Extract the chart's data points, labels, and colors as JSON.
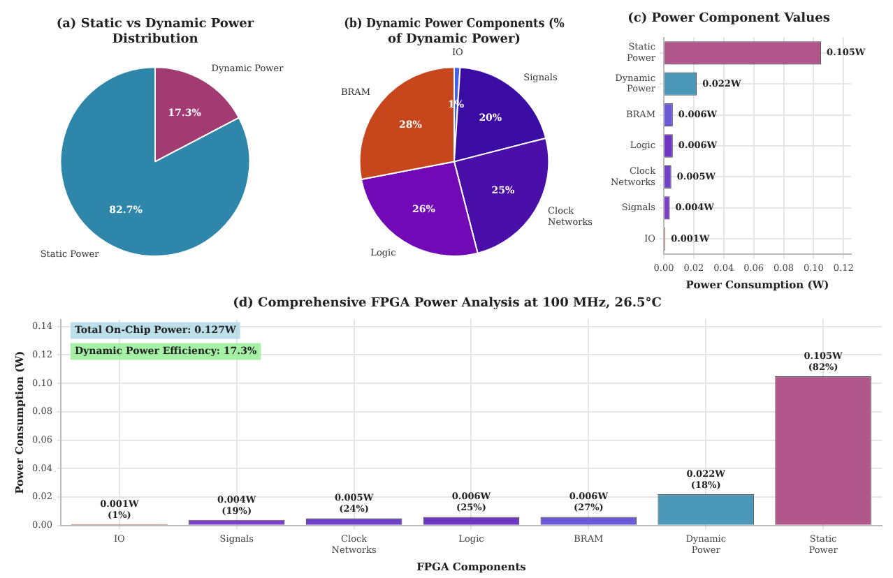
{
  "chart_data": [
    {
      "type": "pie",
      "title": "(a) Static vs Dynamic Power Distribution",
      "categories": [
        "Dynamic Power",
        "Static Power"
      ],
      "values": [
        17.3,
        82.7
      ],
      "colors": [
        "#a23b72",
        "#2e86ab"
      ],
      "value_labels": [
        "17.3%",
        "82.7%"
      ],
      "legend": false
    },
    {
      "type": "pie",
      "title": "(b) Dynamic Power Components (% of Dynamic Power)",
      "categories": [
        "IO",
        "Signals",
        "Clock Networks",
        "Logic",
        "BRAM"
      ],
      "values": [
        1,
        20,
        25,
        26,
        28
      ],
      "colors": [
        "#4361ee",
        "#3a0ca3",
        "#4a0fa8",
        "#7209b7",
        "#c8461c"
      ],
      "value_labels": [
        "1%",
        "20%",
        "25%",
        "26%",
        "28%"
      ],
      "legend": false
    },
    {
      "type": "bar",
      "orientation": "horizontal",
      "title": "(c) Power Component Values",
      "xlabel": "Power Consumption (W)",
      "categories": [
        "Static Power",
        "Dynamic Power",
        "BRAM",
        "Logic",
        "Clock Networks",
        "Signals",
        "IO"
      ],
      "values": [
        0.105,
        0.022,
        0.006,
        0.006,
        0.005,
        0.004,
        0.001
      ],
      "colors": [
        "#b0568a",
        "#4b97b8",
        "#6a5ad8",
        "#6c35c2",
        "#7140c8",
        "#7d3ec8",
        "#c8604a"
      ],
      "value_labels": [
        "0.105W",
        "0.022W",
        "0.006W",
        "0.006W",
        "0.005W",
        "0.004W",
        "0.001W"
      ],
      "xlim": [
        0,
        0.125
      ],
      "xticks": [
        {
          "value": 0,
          "label": "0.00"
        },
        {
          "value": 0.02,
          "label": "0.02"
        },
        {
          "value": 0.04,
          "label": "0.04"
        },
        {
          "value": 0.06,
          "label": "0.06"
        },
        {
          "value": 0.08,
          "label": "0.08"
        },
        {
          "value": 0.1,
          "label": "0.10"
        },
        {
          "value": 0.12,
          "label": "0.12"
        }
      ],
      "grid": true,
      "legend": false
    },
    {
      "type": "bar",
      "title": "(d) Comprehensive FPGA Power Analysis at 100 MHz, 26.5°C",
      "xlabel": "FPGA Components",
      "ylabel": "Power Consumption (W)",
      "categories": [
        "IO",
        "Signals",
        "Clock Networks",
        "Logic",
        "BRAM",
        "Dynamic Power",
        "Static Power"
      ],
      "values": [
        0.001,
        0.004,
        0.005,
        0.006,
        0.006,
        0.022,
        0.105
      ],
      "colors": [
        "#c8604a",
        "#7d3ec8",
        "#7140c8",
        "#6c35c2",
        "#6a5ad8",
        "#4b97b8",
        "#b0568a"
      ],
      "value_labels": [
        "0.001W\n(1%)",
        "0.004W\n(19%)",
        "0.005W\n(24%)",
        "0.006W\n(25%)",
        "0.006W\n(27%)",
        "0.022W\n(18%)",
        "0.105W\n(82%)"
      ],
      "ylim": [
        0,
        0.145
      ],
      "yticks": [
        {
          "value": 0,
          "label": "0.00"
        },
        {
          "value": 0.02,
          "label": "0.02"
        },
        {
          "value": 0.04,
          "label": "0.04"
        },
        {
          "value": 0.06,
          "label": "0.06"
        },
        {
          "value": 0.08,
          "label": "0.08"
        },
        {
          "value": 0.1,
          "label": "0.10"
        },
        {
          "value": 0.12,
          "label": "0.12"
        },
        {
          "value": 0.14,
          "label": "0.14"
        }
      ],
      "annotations": [
        "Total On-Chip Power: 0.127W",
        "Dynamic Power Efficiency: 17.3%"
      ],
      "grid": true,
      "legend": false
    }
  ]
}
